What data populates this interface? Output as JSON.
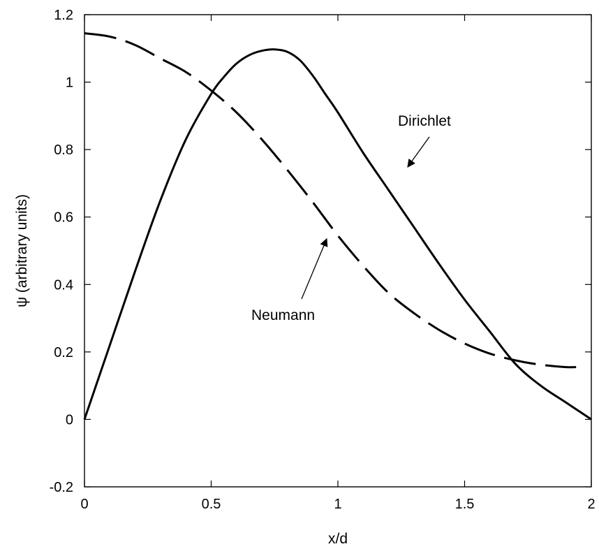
{
  "chart_data": {
    "type": "line",
    "xlabel": "x/d",
    "ylabel": "ψ (arbitrary units)",
    "xlim": [
      0,
      2
    ],
    "ylim": [
      -0.2,
      1.2
    ],
    "x_ticks": [
      0,
      0.5,
      1,
      1.5,
      2
    ],
    "x_tick_labels": [
      "0",
      "0.5",
      "1",
      "1.5",
      "2"
    ],
    "y_ticks": [
      -0.2,
      0,
      0.2,
      0.4,
      0.6,
      0.8,
      1,
      1.2
    ],
    "y_tick_labels": [
      "-0.2",
      "0",
      "0.2",
      "0.4",
      "0.6",
      "0.8",
      "1",
      "1.2"
    ],
    "grid": false,
    "series": [
      {
        "name": "Dirichlet",
        "line_style": "solid",
        "color": "#000000",
        "x": [
          0,
          0.1,
          0.2,
          0.3,
          0.4,
          0.5,
          0.55,
          0.6,
          0.65,
          0.7,
          0.75,
          0.8,
          0.85,
          0.9,
          0.95,
          1.0,
          1.1,
          1.2,
          1.3,
          1.4,
          1.5,
          1.6,
          1.7,
          1.8,
          1.9,
          2.0
        ],
        "y": [
          0,
          0.22,
          0.44,
          0.65,
          0.83,
          0.965,
          1.015,
          1.055,
          1.08,
          1.093,
          1.097,
          1.09,
          1.065,
          1.02,
          0.965,
          0.91,
          0.79,
          0.68,
          0.57,
          0.46,
          0.355,
          0.26,
          0.165,
          0.1,
          0.05,
          0
        ]
      },
      {
        "name": "Neumann",
        "line_style": "dashed",
        "color": "#000000",
        "x": [
          0,
          0.1,
          0.2,
          0.3,
          0.4,
          0.5,
          0.6,
          0.7,
          0.8,
          0.9,
          1.0,
          1.1,
          1.2,
          1.3,
          1.4,
          1.5,
          1.6,
          1.7,
          1.8,
          1.9,
          1.94
        ],
        "y": [
          1.145,
          1.135,
          1.11,
          1.07,
          1.03,
          0.975,
          0.91,
          0.83,
          0.74,
          0.645,
          0.545,
          0.455,
          0.375,
          0.315,
          0.265,
          0.225,
          0.195,
          0.175,
          0.162,
          0.155,
          0.155
        ]
      }
    ],
    "annotations": [
      {
        "text": "Dirichlet",
        "arrow_to": {
          "x": 1.27,
          "y": 0.74
        }
      },
      {
        "text": "Neumann",
        "arrow_to": {
          "x": 0.96,
          "y": 0.54
        }
      }
    ]
  }
}
